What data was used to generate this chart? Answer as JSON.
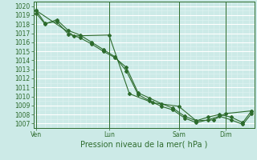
{
  "title": "",
  "xlabel": "Pression niveau de la mer( hPa )",
  "bg_color": "#cceae7",
  "grid_major_color": "#ffffff",
  "grid_minor_color": "#ddf2f0",
  "line_color": "#2d6b2d",
  "ylim": [
    1006.5,
    1020.5
  ],
  "yticks": [
    1007,
    1008,
    1009,
    1010,
    1011,
    1012,
    1013,
    1014,
    1015,
    1016,
    1017,
    1018,
    1019,
    1020
  ],
  "xtick_labels": [
    "Ven",
    "Lun",
    "Sam",
    "Dim"
  ],
  "xtick_positions": [
    0.5,
    13,
    25,
    33
  ],
  "xlim": [
    0,
    38
  ],
  "vline_positions": [
    0.5,
    13,
    25,
    33
  ],
  "series1_x": [
    0.5,
    2.0,
    4.0,
    6.0,
    8.0,
    10.0,
    12.0,
    14.0,
    16.0,
    18.0,
    20.0,
    22.0,
    24.0,
    26.0,
    28.0,
    30.0,
    32.0,
    34.0,
    36.0,
    37.5
  ],
  "series1_y": [
    1019.5,
    1018.1,
    1018.3,
    1016.9,
    1016.5,
    1015.8,
    1015.0,
    1014.3,
    1013.2,
    1010.4,
    1009.8,
    1009.2,
    1008.7,
    1007.8,
    1007.3,
    1007.7,
    1008.0,
    1007.7,
    1007.1,
    1008.4
  ],
  "series2_x": [
    0.5,
    2.0,
    4.0,
    6.0,
    8.0,
    10.0,
    12.0,
    14.0,
    16.0,
    18.0,
    20.0,
    22.0,
    24.0,
    26.0,
    28.0,
    30.0,
    32.0,
    34.0,
    36.0,
    37.5
  ],
  "series2_y": [
    1019.2,
    1018.0,
    1018.5,
    1017.3,
    1016.8,
    1016.0,
    1015.2,
    1014.4,
    1012.8,
    1010.2,
    1009.5,
    1008.9,
    1008.5,
    1007.6,
    1007.1,
    1007.4,
    1007.8,
    1007.4,
    1006.9,
    1008.1
  ],
  "series3_x": [
    0.5,
    7.0,
    13.0,
    16.5,
    20.5,
    25.0,
    28.0,
    31.0,
    33.0,
    37.5
  ],
  "series3_y": [
    1019.5,
    1016.7,
    1016.8,
    1010.3,
    1009.3,
    1008.9,
    1007.3,
    1007.4,
    1008.1,
    1008.4
  ],
  "xlabel_fontsize": 7,
  "tick_fontsize": 5.5,
  "axis_color": "#2d6b2d"
}
